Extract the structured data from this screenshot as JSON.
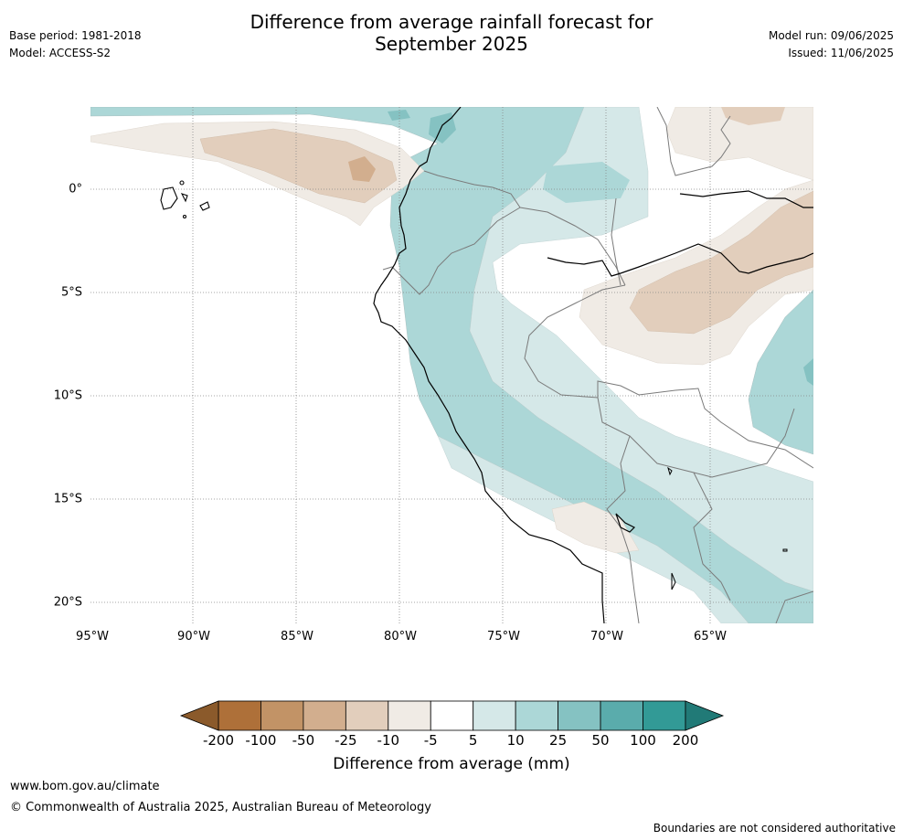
{
  "title_line1": "Difference from average rainfall forecast for",
  "title_line2": "September 2025",
  "base_period": "Base period: 1981-2018",
  "model": "Model: ACCESS-S2",
  "model_run": "Model run: 09/06/2025",
  "issued": "Issued: 11/06/2025",
  "lon_labels": [
    "95°W",
    "90°W",
    "85°W",
    "80°W",
    "75°W",
    "70°W",
    "65°W"
  ],
  "lat_labels": [
    "0°",
    "5°S",
    "10°S",
    "15°S",
    "20°S"
  ],
  "colorbar": {
    "title": "Difference from average (mm)",
    "ticks": [
      "-200",
      "-100",
      "-50",
      "-25",
      "-10",
      "-5",
      "5",
      "10",
      "25",
      "50",
      "100",
      "200"
    ],
    "colors": [
      "#8b5a2b",
      "#ae7039",
      "#c29366",
      "#d2ae8e",
      "#e2cebc",
      "#f0ebe5",
      "#ffffff",
      "#d5e8e8",
      "#acd7d7",
      "#85c2c2",
      "#5aacac",
      "#329a96",
      "#217a77"
    ]
  },
  "footer_url": "www.bom.gov.au/climate",
  "copyright": "© Commonwealth of Australia 2025, Australian Bureau of Meteorology",
  "disclaimer": "Boundaries are not considered authoritative"
}
